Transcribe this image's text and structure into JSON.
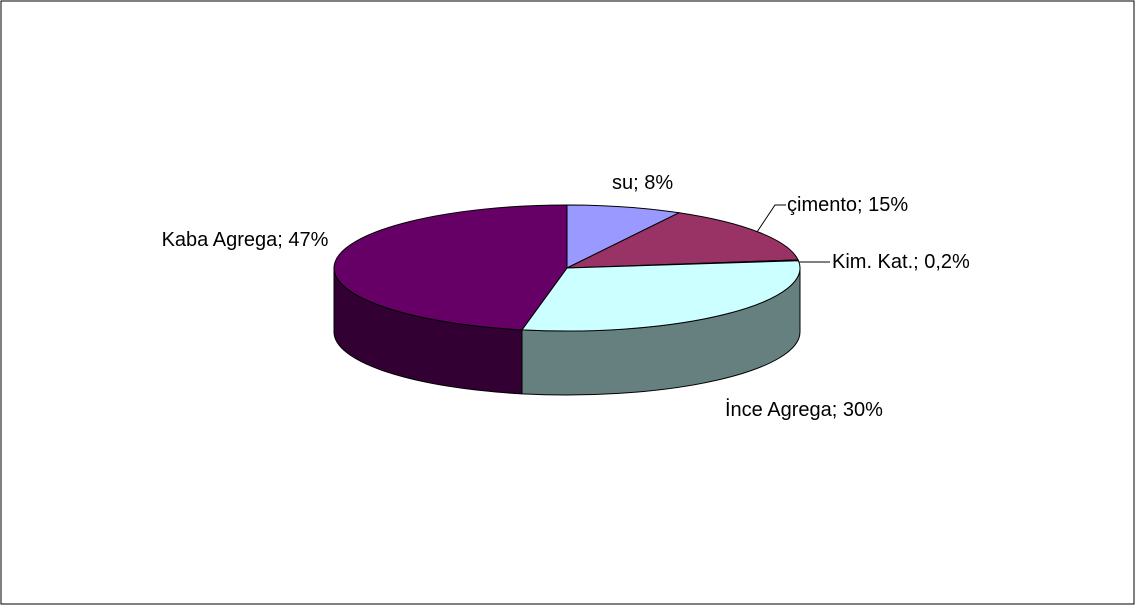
{
  "chart_data": {
    "type": "pie3d",
    "values": [
      8,
      15,
      0.2,
      30,
      47
    ],
    "value_labels": [
      "su; 8%",
      "çimento; 15%",
      "Kim. Kat.; 0,2%",
      "İnce Agrega; 30%",
      "Kaba Agrega; 47%"
    ],
    "colors": [
      "#9999ff",
      "#993366",
      "#ffffcc",
      "#ccffff",
      "#660066"
    ]
  }
}
